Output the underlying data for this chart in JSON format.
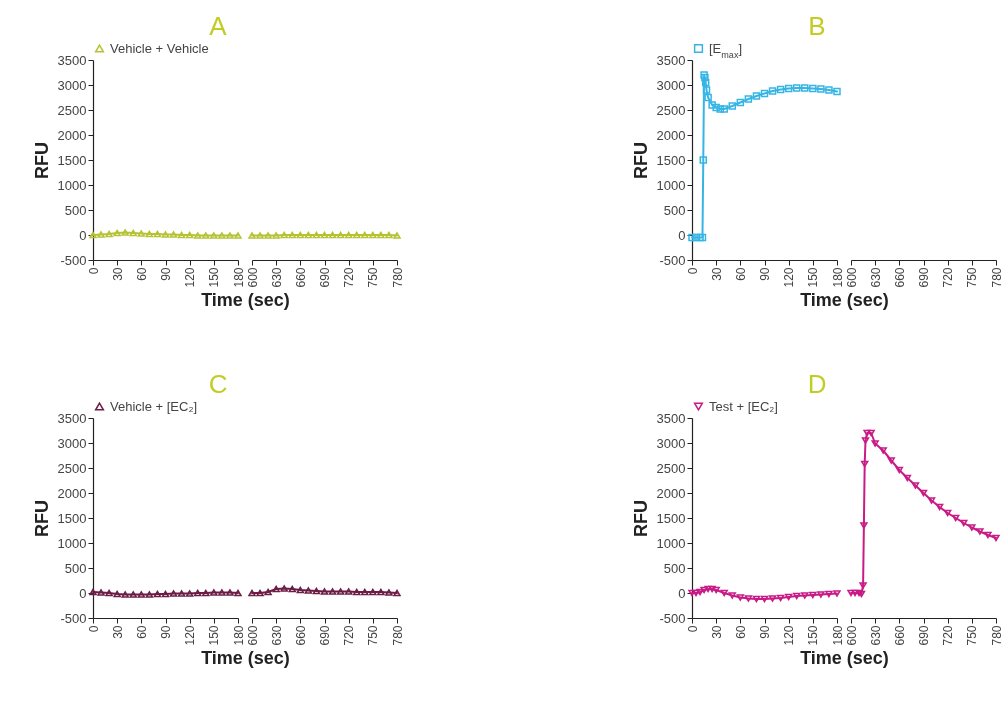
{
  "chart_data": [
    {
      "type": "line",
      "title": "A",
      "xlabel": "Time (sec)",
      "ylabel": "RFU",
      "xlim": [
        0,
        180
      ],
      "xticks": [
        0,
        30,
        60,
        90,
        120,
        150,
        180
      ],
      "ylim": [
        -500,
        3500
      ],
      "yticks": [
        -500,
        0,
        500,
        1000,
        1500,
        2000,
        2500,
        3000,
        3500
      ],
      "legend": "top left",
      "marker": "triangle",
      "line_style": "solid",
      "series": [
        {
          "name": "Vehicle + Vehicle",
          "color": "#b5c234",
          "x": [
            0,
            10,
            20,
            30,
            40,
            50,
            60,
            70,
            80,
            90,
            100,
            110,
            120,
            130,
            140,
            150,
            160,
            170,
            180
          ],
          "values": [
            0,
            10,
            20,
            40,
            50,
            40,
            30,
            20,
            20,
            10,
            10,
            0,
            0,
            -10,
            -10,
            -10,
            -10,
            -10,
            -10
          ]
        }
      ]
    },
    {
      "type": "line",
      "xlim": [
        600,
        780
      ],
      "xticks": [
        600,
        630,
        660,
        690,
        720,
        750,
        780
      ],
      "ylim": [
        -500,
        3500
      ],
      "tick_labels": "x",
      "marker": "triangle",
      "line_style": "solid",
      "series": [
        {
          "color": "#b5c234",
          "x": [
            600,
            610,
            620,
            630,
            640,
            650,
            660,
            670,
            680,
            690,
            700,
            710,
            720,
            730,
            740,
            750,
            760,
            770,
            780
          ],
          "values": [
            -10,
            -10,
            -10,
            -10,
            0,
            0,
            0,
            0,
            0,
            0,
            0,
            0,
            0,
            0,
            0,
            0,
            0,
            0,
            -10
          ]
        }
      ]
    },
    {
      "type": "line",
      "title": "B",
      "xlabel": "Time (sec)",
      "ylabel": "RFU",
      "xlim": [
        0,
        180
      ],
      "xticks": [
        0,
        30,
        60,
        90,
        120,
        150,
        180
      ],
      "ylim": [
        -500,
        3500
      ],
      "yticks": [
        -500,
        0,
        500,
        1000,
        1500,
        2000,
        2500,
        3000,
        3500
      ],
      "legend": "top left",
      "marker": "square",
      "line_style": "solid",
      "series": [
        {
          "name": "[E$_{max}$]",
          "color": "#36b5e5",
          "x": [
            0,
            5,
            10,
            13,
            14,
            15,
            16,
            17,
            18,
            20,
            25,
            30,
            35,
            40,
            50,
            60,
            70,
            80,
            90,
            100,
            110,
            120,
            130,
            140,
            150,
            160,
            170,
            180
          ],
          "values": [
            -50,
            -50,
            -50,
            -50,
            1500,
            3200,
            3150,
            3050,
            2900,
            2750,
            2600,
            2550,
            2520,
            2520,
            2580,
            2650,
            2720,
            2780,
            2830,
            2880,
            2910,
            2930,
            2940,
            2940,
            2930,
            2920,
            2900,
            2870
          ]
        }
      ]
    },
    {
      "type": "line",
      "xlim": [
        600,
        780
      ],
      "xticks": [
        600,
        630,
        660,
        690,
        720,
        750,
        780
      ],
      "ylim": [
        -500,
        3500
      ],
      "tick_labels": "x",
      "line_style": "solid"
    },
    {
      "type": "line",
      "title": "C",
      "xlabel": "Time (sec)",
      "ylabel": "RFU",
      "xlim": [
        0,
        180
      ],
      "xticks": [
        0,
        30,
        60,
        90,
        120,
        150,
        180
      ],
      "ylim": [
        -500,
        3500
      ],
      "yticks": [
        -500,
        0,
        500,
        1000,
        1500,
        2000,
        2500,
        3000,
        3500
      ],
      "legend": "top left",
      "marker": "triangle",
      "line_style": "solid",
      "series": [
        {
          "name": "Vehicle + [EC₂]",
          "color": "#6b1d45",
          "x": [
            0,
            10,
            20,
            30,
            40,
            50,
            60,
            70,
            80,
            90,
            100,
            110,
            120,
            130,
            140,
            150,
            160,
            170,
            180
          ],
          "values": [
            20,
            10,
            0,
            -20,
            -30,
            -30,
            -30,
            -30,
            -20,
            -20,
            -10,
            -10,
            -10,
            0,
            0,
            10,
            10,
            10,
            0
          ]
        }
      ]
    },
    {
      "type": "line",
      "xlim": [
        600,
        780
      ],
      "xticks": [
        600,
        630,
        660,
        690,
        720,
        750,
        780
      ],
      "ylim": [
        -500,
        3500
      ],
      "tick_labels": "x",
      "marker": "triangle",
      "line_style": "solid",
      "series": [
        {
          "color": "#6b1d45",
          "x": [
            600,
            610,
            620,
            630,
            640,
            650,
            660,
            670,
            680,
            690,
            700,
            710,
            720,
            730,
            740,
            750,
            760,
            770,
            780
          ],
          "values": [
            0,
            0,
            20,
            80,
            90,
            80,
            60,
            50,
            40,
            30,
            30,
            30,
            30,
            20,
            20,
            20,
            20,
            10,
            0
          ]
        }
      ]
    },
    {
      "type": "line",
      "title": "D",
      "xlabel": "Time (sec)",
      "ylabel": "RFU",
      "xlim": [
        0,
        180
      ],
      "xticks": [
        0,
        30,
        60,
        90,
        120,
        150,
        180
      ],
      "ylim": [
        -500,
        3500
      ],
      "yticks": [
        -500,
        0,
        500,
        1000,
        1500,
        2000,
        2500,
        3000,
        3500
      ],
      "legend": "top left",
      "marker": "triangle-down",
      "line_style": "solid",
      "series": [
        {
          "name": "Test + [EC₂]",
          "color": "#c81b86",
          "x": [
            0,
            5,
            10,
            15,
            20,
            25,
            30,
            40,
            50,
            60,
            70,
            80,
            90,
            100,
            110,
            120,
            130,
            140,
            150,
            160,
            170,
            180
          ],
          "values": [
            0,
            0,
            20,
            60,
            80,
            80,
            60,
            0,
            -50,
            -90,
            -110,
            -120,
            -120,
            -110,
            -100,
            -80,
            -60,
            -50,
            -40,
            -30,
            -20,
            -10
          ]
        }
      ]
    },
    {
      "type": "line",
      "xlim": [
        600,
        780
      ],
      "xticks": [
        600,
        630,
        660,
        690,
        720,
        750,
        780
      ],
      "ylim": [
        -500,
        3500
      ],
      "tick_labels": "x",
      "marker": "triangle-down",
      "line_style": "solid",
      "series": [
        {
          "color": "#c81b86",
          "x": [
            600,
            605,
            610,
            613,
            615,
            616,
            617,
            618,
            620,
            625,
            630,
            640,
            650,
            660,
            670,
            680,
            690,
            700,
            710,
            720,
            730,
            740,
            750,
            760,
            770,
            780
          ],
          "values": [
            0,
            0,
            0,
            -20,
            150,
            1350,
            2580,
            3050,
            3200,
            3200,
            2990,
            2850,
            2650,
            2460,
            2300,
            2150,
            2000,
            1850,
            1720,
            1600,
            1500,
            1400,
            1310,
            1230,
            1160,
            1100
          ]
        }
      ]
    }
  ]
}
